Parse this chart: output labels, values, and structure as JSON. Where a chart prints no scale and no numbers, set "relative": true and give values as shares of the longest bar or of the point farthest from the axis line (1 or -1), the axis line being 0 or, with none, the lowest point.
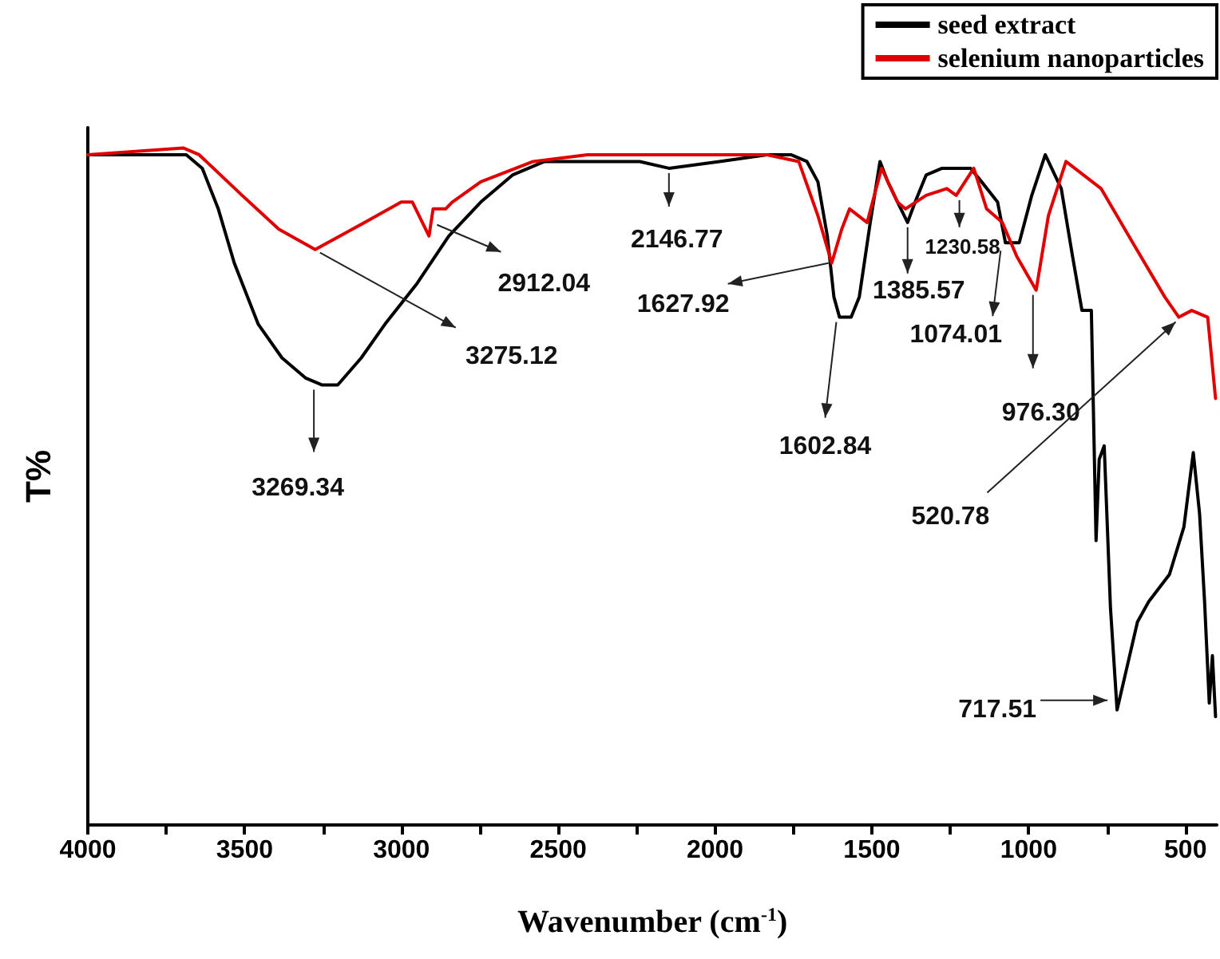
{
  "chart_data": {
    "type": "line",
    "relative": true,
    "xlabel": "Wavenumber (cm$^{-1}$)",
    "ylabel": "T%",
    "xlim": [
      4000,
      400
    ],
    "xticks": [
      4000,
      {
        "value": 3750,
        "label": null
      },
      3500,
      {
        "value": 3250,
        "label": null
      },
      3000,
      {
        "value": 2750,
        "label": null
      },
      2500,
      {
        "value": 2250,
        "label": null
      },
      2000,
      {
        "value": 1750,
        "label": null
      },
      1500,
      {
        "value": 1250,
        "label": null
      },
      1000,
      {
        "value": 750,
        "label": null
      },
      500
    ],
    "legend": "top right",
    "marker": "none",
    "line_style": "solid",
    "series": [
      {
        "name": "seed extract",
        "color": "#000000",
        "x": [
          4000,
          3762,
          3686,
          3635,
          3584,
          3533,
          3457,
          3381,
          3305,
          3254,
          3203,
          3128,
          3052,
          2950,
          2849,
          2747,
          2646,
          2544,
          2392,
          2240,
          2147,
          1986,
          1834,
          1758,
          1707,
          1672,
          1642,
          1621,
          1603,
          1566,
          1540,
          1505,
          1474,
          1449,
          1418,
          1386,
          1362,
          1327,
          1276,
          1226,
          1185,
          1150,
          1099,
          1074,
          1030,
          990,
          947,
          896,
          860,
          830,
          800,
          785,
          775,
          759,
          739,
          718,
          688,
          653,
          617,
          551,
          505,
          475,
          455,
          439,
          424,
          414,
          404
        ],
        "values": [
          0.99,
          0.99,
          0.99,
          0.97,
          0.91,
          0.83,
          0.74,
          0.69,
          0.66,
          0.65,
          0.65,
          0.69,
          0.74,
          0.8,
          0.87,
          0.92,
          0.96,
          0.98,
          0.98,
          0.98,
          0.97,
          0.98,
          0.99,
          0.99,
          0.98,
          0.95,
          0.87,
          0.78,
          0.75,
          0.75,
          0.78,
          0.89,
          0.98,
          0.95,
          0.92,
          0.89,
          0.92,
          0.96,
          0.97,
          0.97,
          0.97,
          0.95,
          0.92,
          0.86,
          0.86,
          0.93,
          0.99,
          0.94,
          0.84,
          0.76,
          0.76,
          0.42,
          0.54,
          0.56,
          0.32,
          0.17,
          0.23,
          0.3,
          0.33,
          0.37,
          0.44,
          0.55,
          0.46,
          0.33,
          0.18,
          0.25,
          0.16
        ]
      },
      {
        "name": "selenium nanoparticles",
        "color": "#e00000",
        "x": [
          4000,
          3696,
          3645,
          3508,
          3391,
          3275,
          3117,
          3001,
          2965,
          2912,
          2899,
          2859,
          2838,
          2747,
          2580,
          2407,
          2341,
          1834,
          1733,
          1672,
          1628,
          1596,
          1571,
          1515,
          1469,
          1418,
          1393,
          1327,
          1261,
          1231,
          1175,
          1134,
          1084,
          1038,
          976,
          937,
          881,
          769,
          668,
          566,
          521,
          480,
          429,
          404
        ],
        "values": [
          0.99,
          1,
          0.99,
          0.93,
          0.88,
          0.85,
          0.89,
          0.92,
          0.92,
          0.87,
          0.91,
          0.91,
          0.92,
          0.95,
          0.98,
          0.99,
          0.99,
          0.99,
          0.98,
          0.9,
          0.83,
          0.88,
          0.91,
          0.89,
          0.97,
          0.92,
          0.91,
          0.93,
          0.94,
          0.93,
          0.97,
          0.91,
          0.89,
          0.84,
          0.79,
          0.9,
          0.98,
          0.94,
          0.86,
          0.78,
          0.75,
          0.76,
          0.75,
          0.63
        ]
      }
    ],
    "annotations": [
      {
        "text": "3269.34",
        "x": 3269,
        "y": 0.65
      },
      {
        "text": "3275.12",
        "x": 3275,
        "y": 0.85
      },
      {
        "text": "2912.04",
        "x": 2912,
        "y": 0.87
      },
      {
        "text": "2146.77",
        "x": 2147,
        "y": 0.97
      },
      {
        "text": "1627.92",
        "x": 1628,
        "y": 0.83
      },
      {
        "text": "1602.84",
        "x": 1603,
        "y": 0.75
      },
      {
        "text": "1385.57",
        "x": 1386,
        "y": 0.89
      },
      {
        "text": "1230.58",
        "x": 1231,
        "y": 0.93
      },
      {
        "text": "1074.01",
        "x": 1074,
        "y": 0.86
      },
      {
        "text": "976.30",
        "x": 976,
        "y": 0.79
      },
      {
        "text": "520.78",
        "x": 521,
        "y": 0.75
      },
      {
        "text": "717.51",
        "x": 718,
        "y": 0.17
      }
    ]
  }
}
